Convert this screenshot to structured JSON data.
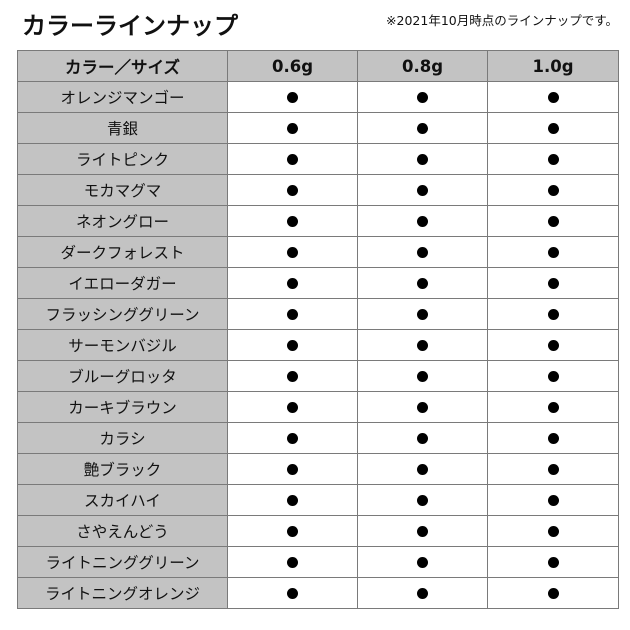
{
  "title": "カラーラインナップ",
  "note": "※2021年10月時点のラインナップです。",
  "headers": [
    "カラー／サイズ",
    "0.6g",
    "0.8g",
    "1.0g"
  ],
  "mark": "●",
  "rows": [
    {
      "name": "オレンジマンゴー",
      "available": [
        true,
        true,
        true
      ]
    },
    {
      "name": "青銀",
      "available": [
        true,
        true,
        true
      ]
    },
    {
      "name": "ライトピンク",
      "available": [
        true,
        true,
        true
      ]
    },
    {
      "name": "モカマグマ",
      "available": [
        true,
        true,
        true
      ]
    },
    {
      "name": "ネオングロー",
      "available": [
        true,
        true,
        true
      ]
    },
    {
      "name": "ダークフォレスト",
      "available": [
        true,
        true,
        true
      ]
    },
    {
      "name": "イエローダガー",
      "available": [
        true,
        true,
        true
      ]
    },
    {
      "name": "フラッシンググリーン",
      "available": [
        true,
        true,
        true
      ]
    },
    {
      "name": "サーモンバジル",
      "available": [
        true,
        true,
        true
      ]
    },
    {
      "name": "ブルーグロッタ",
      "available": [
        true,
        true,
        true
      ]
    },
    {
      "name": "カーキブラウン",
      "available": [
        true,
        true,
        true
      ]
    },
    {
      "name": "カラシ",
      "available": [
        true,
        true,
        true
      ]
    },
    {
      "name": "艶ブラック",
      "available": [
        true,
        true,
        true
      ]
    },
    {
      "name": "スカイハイ",
      "available": [
        true,
        true,
        true
      ]
    },
    {
      "name": "さやえんどう",
      "available": [
        true,
        true,
        true
      ]
    },
    {
      "name": "ライトニンググリーン",
      "available": [
        true,
        true,
        true
      ]
    },
    {
      "name": "ライトニングオレンジ",
      "available": [
        true,
        true,
        true
      ]
    }
  ]
}
